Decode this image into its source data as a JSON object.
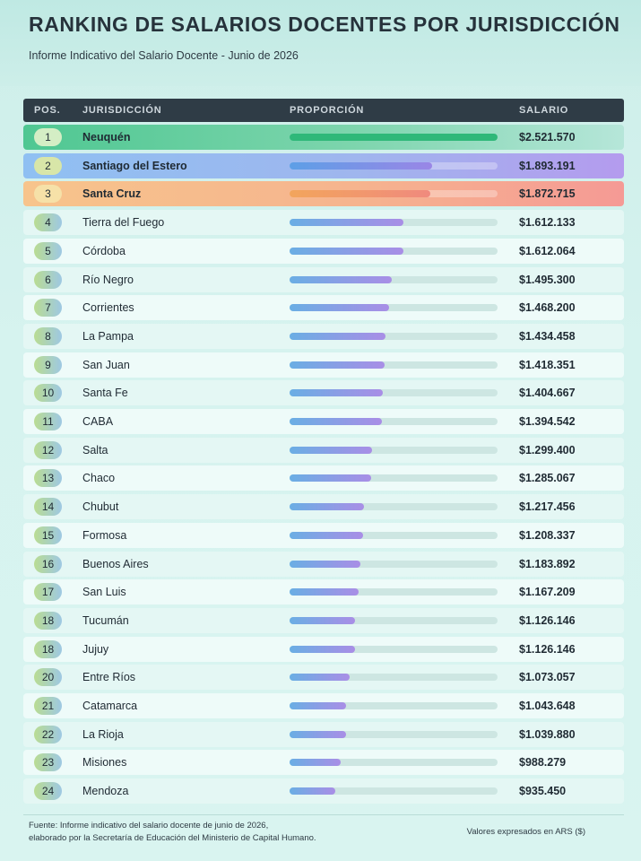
{
  "header": {
    "title": "RANKING DE SALARIOS DOCENTES POR JURISDICCIÓN",
    "subtitle": "Informe Indicativo del Salario Docente - Junio de 2026"
  },
  "table": {
    "columns": {
      "pos": "POS.",
      "jurisdiction": "JURISDICCIÓN",
      "proportion": "PROPORCIÓN",
      "salary": "SALARIO"
    }
  },
  "chart_data": {
    "type": "bar",
    "title": "RANKING DE SALARIOS DOCENTES POR JURISDICCIÓN",
    "subtitle": "Informe Indicativo del Salario Docente - Junio de 2026",
    "xlabel": "",
    "ylabel": "",
    "categories": [
      "Neuquén",
      "Santiago del Estero",
      "Santa Cruz",
      "Tierra del Fuego",
      "Córdoba",
      "Río Negro",
      "Corrientes",
      "La Pampa",
      "San Juan",
      "Santa Fe",
      "CABA",
      "Salta",
      "Chaco",
      "Chubut",
      "Formosa",
      "Buenos Aires",
      "San Luis",
      "Tucumán",
      "Jujuy",
      "Entre Ríos",
      "Catamarca",
      "La Rioja",
      "Misiones",
      "Mendoza"
    ],
    "positions": [
      "1",
      "2",
      "3",
      "4",
      "5",
      "6",
      "7",
      "8",
      "9",
      "10",
      "11",
      "12",
      "13",
      "14",
      "15",
      "16",
      "17",
      "18",
      "18",
      "20",
      "21",
      "22",
      "23",
      "24"
    ],
    "values": [
      2521570,
      1893191,
      1872715,
      1612133,
      1612064,
      1495300,
      1468200,
      1434458,
      1418351,
      1404667,
      1394542,
      1299400,
      1285067,
      1217456,
      1208337,
      1183892,
      1167209,
      1126146,
      1126146,
      1073057,
      1043648,
      1039880,
      988279,
      935450
    ],
    "value_labels": [
      "$2.521.570",
      "$1.893.191",
      "$1.872.715",
      "$1.612.133",
      "$1.612.064",
      "$1.495.300",
      "$1.468.200",
      "$1.434.458",
      "$1.418.351",
      "$1.404.667",
      "$1.394.542",
      "$1.299.400",
      "$1.285.067",
      "$1.217.456",
      "$1.208.337",
      "$1.183.892",
      "$1.167.209",
      "$1.126.146",
      "$1.126.146",
      "$1.073.057",
      "$1.043.648",
      "$1.039.880",
      "$988.279",
      "$935.450"
    ],
    "xlim": [
      0,
      2521570
    ],
    "grid": false,
    "legend": "none",
    "colors": {
      "first": "#2fb879",
      "second": "#9a86e6",
      "third": "#f08a7e",
      "bar_start": "#6aaee4",
      "bar_end": "#a98ee6"
    }
  },
  "footer": {
    "source_line1": "Fuente: Informe indicativo del salario docente de junio de 2026,",
    "source_line2": "elaborado por la Secretaría de Educación del Ministerio de Capital Humano.",
    "units": "Valores expresados en ARS ($)"
  }
}
